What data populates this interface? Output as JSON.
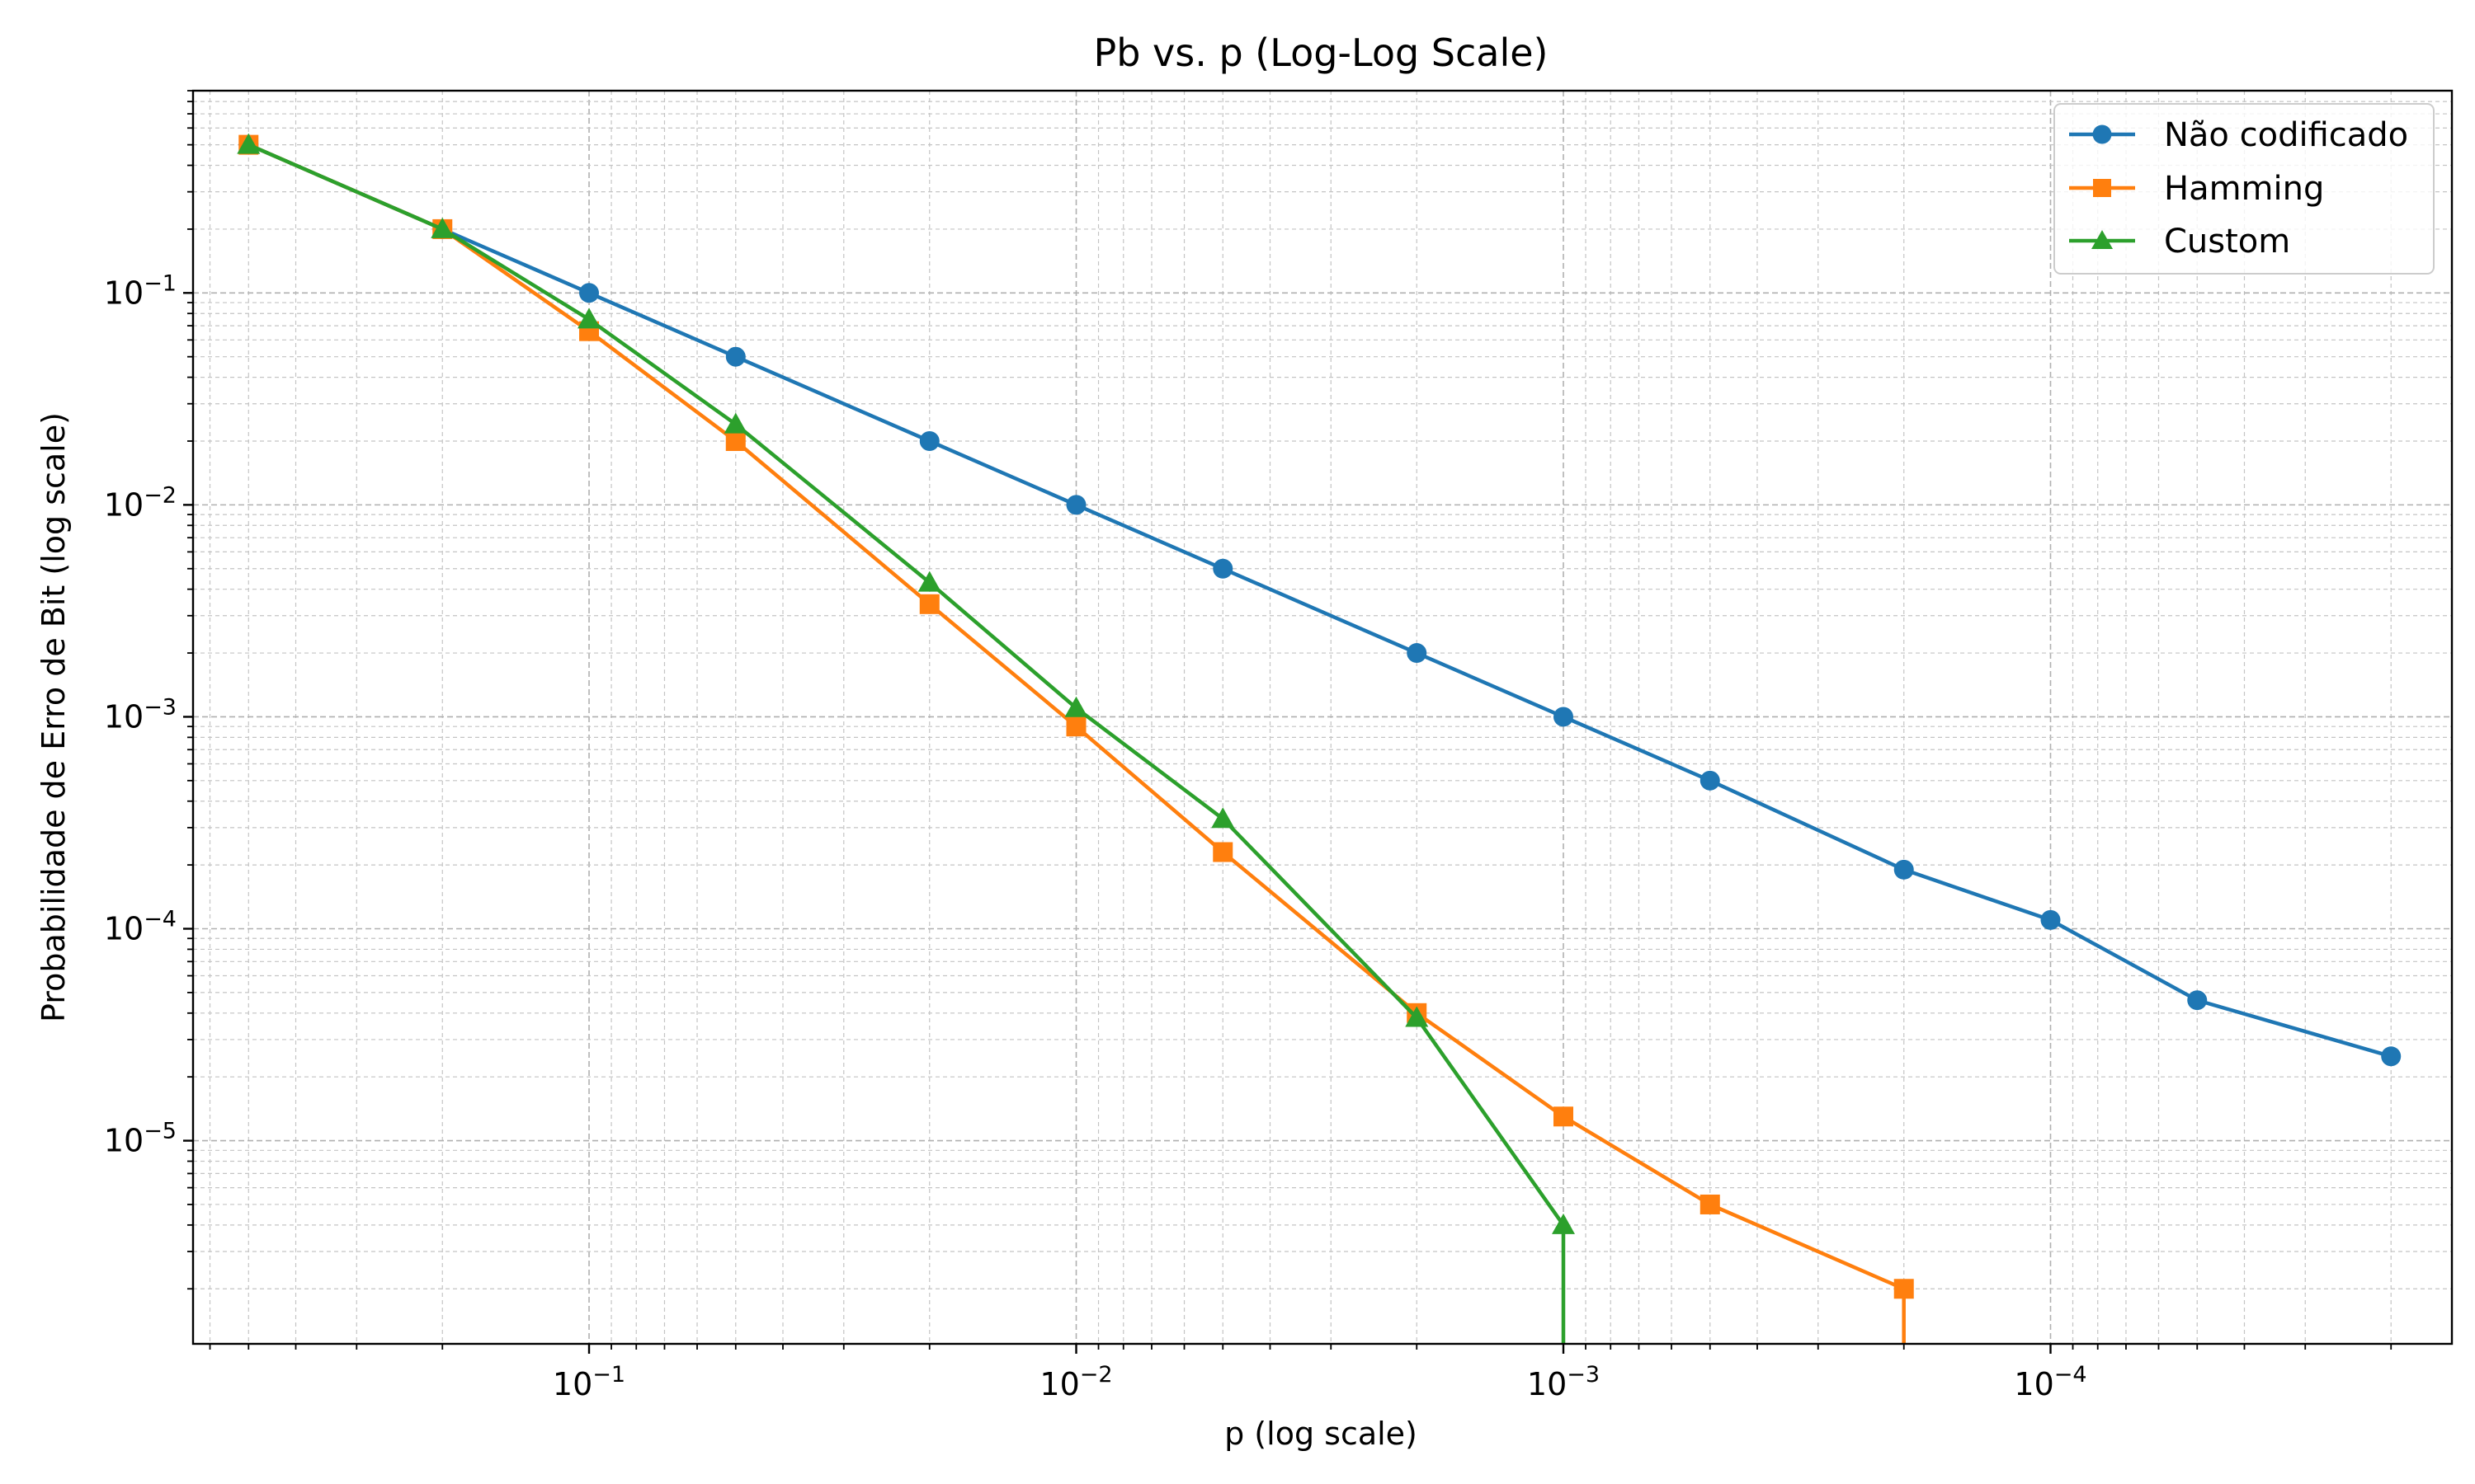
{
  "chart_data": {
    "type": "line",
    "title": "Pb vs. p (Log-Log Scale)",
    "xlabel": "p (log scale)",
    "ylabel": "Probabilidade de Erro de Bit (log scale)",
    "xscale": "log",
    "yscale": "log",
    "x_inverted": true,
    "xlim": [
      0.65,
      1.5e-05
    ],
    "ylim": [
      1.1e-06,
      0.9
    ],
    "x_ticks": [
      {
        "base": "10",
        "exp": "−1",
        "value": 0.1
      },
      {
        "base": "10",
        "exp": "−2",
        "value": 0.01
      },
      {
        "base": "10",
        "exp": "−3",
        "value": 0.001
      },
      {
        "base": "10",
        "exp": "−4",
        "value": 0.0001
      }
    ],
    "y_ticks": [
      {
        "base": "10",
        "exp": "−1",
        "value": 0.1
      },
      {
        "base": "10",
        "exp": "−2",
        "value": 0.01
      },
      {
        "base": "10",
        "exp": "−3",
        "value": 0.001
      },
      {
        "base": "10",
        "exp": "−4",
        "value": 0.0001
      },
      {
        "base": "10",
        "exp": "−5",
        "value": 1e-05
      }
    ],
    "grid": true,
    "legend_position": "top-right",
    "series": [
      {
        "name": "Não codificado",
        "color": "#1f77b4",
        "marker": "circle",
        "points": [
          [
            0.5,
            0.5
          ],
          [
            0.2,
            0.2
          ],
          [
            0.1,
            0.1
          ],
          [
            0.05,
            0.05
          ],
          [
            0.02,
            0.02
          ],
          [
            0.01,
            0.01
          ],
          [
            0.005,
            0.005
          ],
          [
            0.002,
            0.002
          ],
          [
            0.001,
            0.001
          ],
          [
            0.0005,
            0.0005
          ],
          [
            0.0002,
            0.00019
          ],
          [
            0.0001,
            0.00011
          ],
          [
            5e-05,
            4.6e-05
          ],
          [
            2e-05,
            2.5e-05
          ]
        ]
      },
      {
        "name": "Hamming",
        "color": "#ff7f0e",
        "marker": "square",
        "points": [
          [
            0.5,
            0.5
          ],
          [
            0.2,
            0.2
          ],
          [
            0.1,
            0.066
          ],
          [
            0.05,
            0.02
          ],
          [
            0.02,
            0.0034
          ],
          [
            0.01,
            0.0009
          ],
          [
            0.005,
            0.00023
          ],
          [
            0.002,
            4e-05
          ],
          [
            0.001,
            1.3e-05
          ],
          [
            0.0005,
            5e-06
          ],
          [
            0.0002,
            2e-06
          ],
          [
            0.0002,
            0
          ]
        ]
      },
      {
        "name": "Custom",
        "color": "#2ca02c",
        "marker": "triangle",
        "points": [
          [
            0.5,
            0.5
          ],
          [
            0.2,
            0.2
          ],
          [
            0.1,
            0.075
          ],
          [
            0.05,
            0.024
          ],
          [
            0.02,
            0.0043
          ],
          [
            0.01,
            0.0011
          ],
          [
            0.005,
            0.00033
          ],
          [
            0.002,
            3.8e-05
          ],
          [
            0.001,
            4e-06
          ],
          [
            0.001,
            0
          ]
        ]
      }
    ]
  }
}
